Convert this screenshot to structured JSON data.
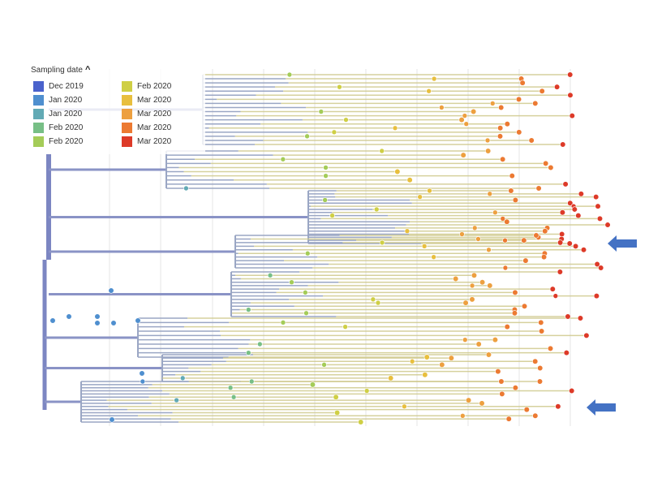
{
  "legend": {
    "title": "Sampling date",
    "toggle_icon": "caret-up-icon",
    "entries": [
      {
        "label": "Dec 2019",
        "color": "#4a62cc"
      },
      {
        "label": "Jan 2020",
        "color": "#4f8fcf"
      },
      {
        "label": "Jan 2020",
        "color": "#62aab5"
      },
      {
        "label": "Feb 2020",
        "color": "#77bf86"
      },
      {
        "label": "Feb 2020",
        "color": "#a4cc58"
      },
      {
        "label": "Feb 2020",
        "color": "#cfcf45"
      },
      {
        "label": "Mar 2020",
        "color": "#e8bf3e"
      },
      {
        "label": "Mar 2020",
        "color": "#eda040"
      },
      {
        "label": "Mar 2020",
        "color": "#ec7a32"
      },
      {
        "label": "Mar 2020",
        "color": "#dd3a28"
      }
    ]
  },
  "annotations": [
    {
      "name": "highlight-arrow-upper",
      "icon": "arrow-left-icon",
      "color": "#4472c4"
    },
    {
      "name": "highlight-arrow-lower",
      "icon": "arrow-left-icon",
      "color": "#4472c4"
    }
  ],
  "tree": {
    "type": "phylogenetic tree (time-scaled)",
    "root_color": "#7c86c2",
    "branch_color_early": "#8ea2c0",
    "branch_color_late": "#cfc98c",
    "gridlines": true
  }
}
